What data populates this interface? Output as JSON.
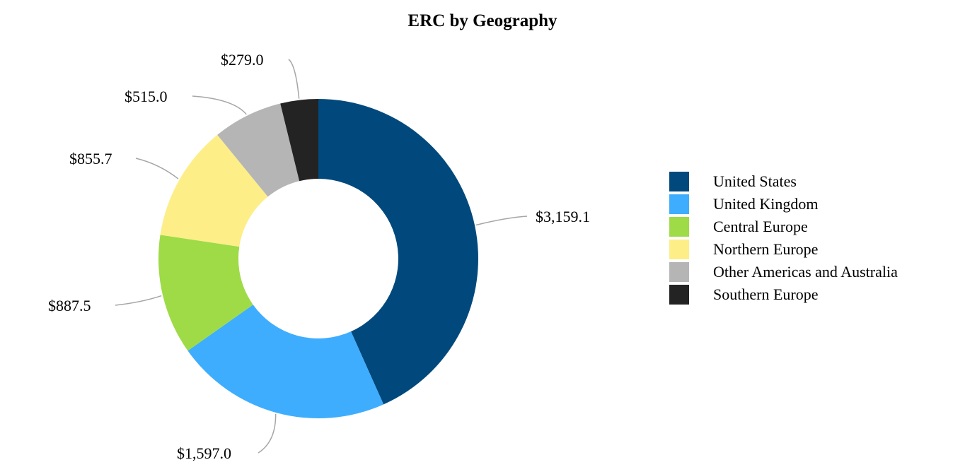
{
  "chart_data": {
    "type": "pie",
    "subtype": "donut",
    "title": "ERC by Geography",
    "categories": [
      "United States",
      "United Kingdom",
      "Central Europe",
      "Northern Europe",
      "Other Americas and Australia",
      "Southern Europe"
    ],
    "values": [
      3159.1,
      1597.0,
      887.5,
      855.7,
      515.0,
      279.0
    ],
    "data_labels": [
      "$3,159.1",
      "$1,597.0",
      "$887.5",
      "$855.7",
      "$515.0",
      "$279.0"
    ],
    "colors": [
      "#01497c",
      "#3fadfd",
      "#9edb47",
      "#fdee88",
      "#b5b5b5",
      "#232323"
    ],
    "legend_position": "right",
    "start_angle": "top, clockwise"
  }
}
